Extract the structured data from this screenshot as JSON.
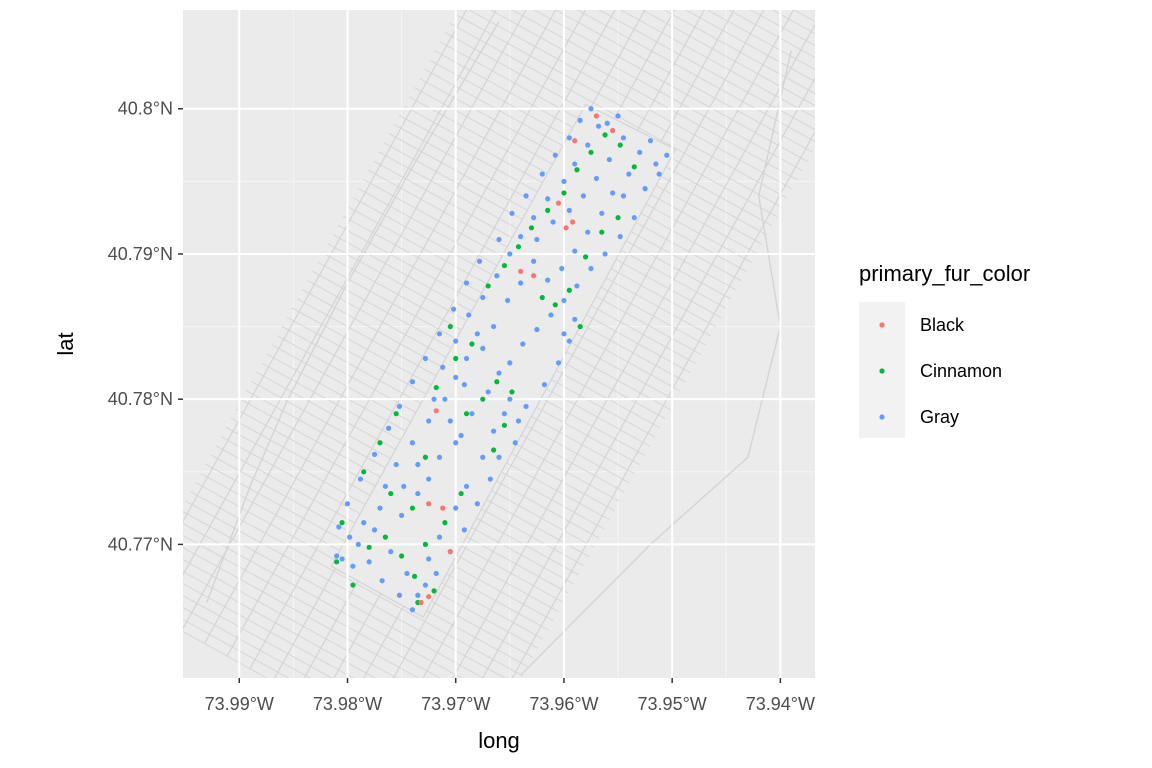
{
  "chart_data": {
    "type": "scatter",
    "xlabel": "long",
    "ylabel": "lat",
    "xlim": [
      -73.9952,
      -73.9368
    ],
    "ylim": [
      40.7608,
      40.8068
    ],
    "x_ticks": [
      -73.99,
      -73.98,
      -73.97,
      -73.96,
      -73.95,
      -73.94
    ],
    "x_tick_labels": [
      "73.99°W",
      "73.98°W",
      "73.97°W",
      "73.96°W",
      "73.95°W",
      "73.94°W"
    ],
    "y_ticks": [
      40.77,
      40.78,
      40.79,
      40.8
    ],
    "y_tick_labels": [
      "40.77°N",
      "40.78°N",
      "40.79°N",
      "40.8°N"
    ],
    "grid": true,
    "legend": {
      "title": "primary_fur_color",
      "position": "right",
      "entries": [
        "Black",
        "Cinnamon",
        "Gray"
      ]
    },
    "colors": {
      "Black": "#F8766D",
      "Cinnamon": "#00BA38",
      "Gray": "#619CFF",
      "panel": "#EBEBEB",
      "grid": "#FFFFFF",
      "basemap": "#D4D4D4"
    },
    "park_region": {
      "corners": [
        [
          -73.9815,
          40.7685
        ],
        [
          -73.973,
          40.765
        ],
        [
          -73.9497,
          40.7972
        ],
        [
          -73.958,
          40.8003
        ]
      ]
    },
    "series": [
      {
        "name": "Gray",
        "points": [
          [
            -73.9805,
            40.769
          ],
          [
            -73.979,
            40.77
          ],
          [
            -73.9775,
            40.771
          ],
          [
            -73.976,
            40.7695
          ],
          [
            -73.9745,
            40.768
          ],
          [
            -73.9735,
            40.7665
          ],
          [
            -73.9725,
            40.769
          ],
          [
            -73.9715,
            40.7705
          ],
          [
            -73.97,
            40.7725
          ],
          [
            -73.969,
            40.774
          ],
          [
            -73.9675,
            40.776
          ],
          [
            -73.9665,
            40.7778
          ],
          [
            -73.97,
            40.777
          ],
          [
            -73.9715,
            40.776
          ],
          [
            -73.9725,
            40.7745
          ],
          [
            -73.9735,
            40.7735
          ],
          [
            -73.975,
            40.772
          ],
          [
            -73.9765,
            40.774
          ],
          [
            -73.9755,
            40.7755
          ],
          [
            -73.974,
            40.777
          ],
          [
            -73.9725,
            40.7785
          ],
          [
            -73.971,
            40.78
          ],
          [
            -73.97,
            40.7815
          ],
          [
            -73.969,
            40.7828
          ],
          [
            -73.9675,
            40.7835
          ],
          [
            -73.966,
            40.7818
          ],
          [
            -73.965,
            40.78
          ],
          [
            -73.9642,
            40.7785
          ],
          [
            -73.9655,
            40.779
          ],
          [
            -73.967,
            40.7805
          ],
          [
            -73.9685,
            40.779
          ],
          [
            -73.9695,
            40.7775
          ],
          [
            -73.9705,
            40.7785
          ],
          [
            -73.972,
            40.78
          ],
          [
            -73.9712,
            40.7822
          ],
          [
            -73.97,
            40.784
          ],
          [
            -73.9688,
            40.7858
          ],
          [
            -73.9675,
            40.787
          ],
          [
            -73.9662,
            40.7885
          ],
          [
            -73.965,
            40.79
          ],
          [
            -73.964,
            40.7912
          ],
          [
            -73.9628,
            40.7925
          ],
          [
            -73.9615,
            40.7938
          ],
          [
            -73.96,
            40.795
          ],
          [
            -73.959,
            40.7962
          ],
          [
            -73.9578,
            40.7975
          ],
          [
            -73.9568,
            40.7988
          ],
          [
            -73.9575,
            40.8
          ],
          [
            -73.956,
            40.799
          ],
          [
            -73.9545,
            40.798
          ],
          [
            -73.953,
            40.797
          ],
          [
            -73.9515,
            40.7962
          ],
          [
            -73.9505,
            40.7968
          ],
          [
            -73.954,
            40.7955
          ],
          [
            -73.9555,
            40.7942
          ],
          [
            -73.9565,
            40.7928
          ],
          [
            -73.9578,
            40.7915
          ],
          [
            -73.959,
            40.7902
          ],
          [
            -73.9602,
            40.789
          ],
          [
            -73.9615,
            40.7882
          ],
          [
            -73.9628,
            40.7895
          ],
          [
            -73.964,
            40.788
          ],
          [
            -73.9652,
            40.7868
          ],
          [
            -73.9625,
            40.791
          ],
          [
            -73.961,
            40.7922
          ],
          [
            -73.9595,
            40.793
          ],
          [
            -73.9582,
            40.794
          ],
          [
            -73.957,
            40.7952
          ],
          [
            -73.9558,
            40.7965
          ],
          [
            -73.9545,
            40.794
          ],
          [
            -73.9535,
            40.7925
          ],
          [
            -73.9548,
            40.7912
          ],
          [
            -73.9562,
            40.79
          ],
          [
            -73.9575,
            40.789
          ],
          [
            -73.9588,
            40.7878
          ],
          [
            -73.96,
            40.7868
          ],
          [
            -73.9612,
            40.7858
          ],
          [
            -73.9625,
            40.7848
          ],
          [
            -73.9638,
            40.7838
          ],
          [
            -73.965,
            40.7825
          ],
          [
            -73.9665,
            40.785
          ],
          [
            -73.968,
            40.7845
          ],
          [
            -73.9692,
            40.781
          ],
          [
            -73.9735,
            40.7755
          ],
          [
            -73.9748,
            40.774
          ],
          [
            -73.977,
            40.7725
          ],
          [
            -73.9785,
            40.7715
          ],
          [
            -73.9798,
            40.7705
          ],
          [
            -73.981,
            40.7692
          ],
          [
            -73.9795,
            40.7685
          ],
          [
            -73.978,
            40.7688
          ],
          [
            -73.9768,
            40.7675
          ],
          [
            -73.9752,
            40.7665
          ],
          [
            -73.974,
            40.7655
          ],
          [
            -73.9728,
            40.7672
          ],
          [
            -73.9718,
            40.768
          ],
          [
            -73.9705,
            40.7695
          ],
          [
            -73.9692,
            40.771
          ],
          [
            -73.968,
            40.7728
          ],
          [
            -73.9668,
            40.7745
          ],
          [
            -73.966,
            40.776
          ],
          [
            -73.9645,
            40.777
          ],
          [
            -73.9635,
            40.7795
          ],
          [
            -73.9618,
            40.781
          ],
          [
            -73.9605,
            40.7825
          ],
          [
            -73.9595,
            40.784
          ],
          [
            -73.959,
            40.7855
          ],
          [
            -73.96,
            40.7845
          ],
          [
            -73.966,
            40.791
          ],
          [
            -73.9648,
            40.7928
          ],
          [
            -73.9635,
            40.794
          ],
          [
            -73.962,
            40.7955
          ],
          [
            -73.9608,
            40.7968
          ],
          [
            -73.9595,
            40.798
          ],
          [
            -73.9585,
            40.7992
          ],
          [
            -73.955,
            40.7995
          ],
          [
            -73.952,
            40.7978
          ],
          [
            -73.9512,
            40.7955
          ],
          [
            -73.9525,
            40.7945
          ],
          [
            -73.9678,
            40.7895
          ],
          [
            -73.969,
            40.788
          ],
          [
            -73.9702,
            40.7862
          ],
          [
            -73.9715,
            40.7845
          ],
          [
            -73.9728,
            40.7828
          ],
          [
            -73.974,
            40.7812
          ],
          [
            -73.9752,
            40.7795
          ],
          [
            -73.9762,
            40.778
          ],
          [
            -73.9775,
            40.7762
          ],
          [
            -73.9788,
            40.7745
          ],
          [
            -73.98,
            40.7728
          ],
          [
            -73.9808,
            40.7712
          ]
        ]
      },
      {
        "name": "Cinnamon",
        "points": [
          [
            -73.981,
            40.7688
          ],
          [
            -73.9795,
            40.7672
          ],
          [
            -73.978,
            40.7698
          ],
          [
            -73.9765,
            40.7705
          ],
          [
            -73.975,
            40.7692
          ],
          [
            -73.9738,
            40.7678
          ],
          [
            -73.9728,
            40.77
          ],
          [
            -73.971,
            40.7715
          ],
          [
            -73.9695,
            40.7735
          ],
          [
            -73.974,
            40.7725
          ],
          [
            -73.976,
            40.7735
          ],
          [
            -73.9728,
            40.776
          ],
          [
            -73.969,
            40.779
          ],
          [
            -73.9675,
            40.78
          ],
          [
            -73.9662,
            40.7812
          ],
          [
            -73.9648,
            40.7805
          ],
          [
            -73.97,
            40.7828
          ],
          [
            -73.9685,
            40.7838
          ],
          [
            -73.967,
            40.7878
          ],
          [
            -73.9655,
            40.7892
          ],
          [
            -73.9642,
            40.7905
          ],
          [
            -73.963,
            40.7918
          ],
          [
            -73.9615,
            40.793
          ],
          [
            -73.96,
            40.7942
          ],
          [
            -73.9588,
            40.7958
          ],
          [
            -73.9575,
            40.797
          ],
          [
            -73.9562,
            40.7982
          ],
          [
            -73.9548,
            40.7975
          ],
          [
            -73.9535,
            40.796
          ],
          [
            -73.955,
            40.7925
          ],
          [
            -73.9565,
            40.7915
          ],
          [
            -73.958,
            40.7898
          ],
          [
            -73.9595,
            40.7875
          ],
          [
            -73.9608,
            40.7865
          ],
          [
            -73.962,
            40.787
          ],
          [
            -73.9585,
            40.785
          ],
          [
            -73.9735,
            40.766
          ],
          [
            -73.972,
            40.7668
          ],
          [
            -73.9805,
            40.7715
          ],
          [
            -73.9785,
            40.775
          ],
          [
            -73.977,
            40.777
          ],
          [
            -73.9755,
            40.779
          ],
          [
            -73.9718,
            40.7808
          ],
          [
            -73.9705,
            40.785
          ],
          [
            -73.9665,
            40.7765
          ],
          [
            -73.9655,
            40.7782
          ]
        ]
      },
      {
        "name": "Black",
        "points": [
          [
            -73.9732,
            40.766
          ],
          [
            -73.9725,
            40.7664
          ],
          [
            -73.9705,
            40.7695
          ],
          [
            -73.9712,
            40.7725
          ],
          [
            -73.9725,
            40.7728
          ],
          [
            -73.9718,
            40.7792
          ],
          [
            -73.9628,
            40.7885
          ],
          [
            -73.964,
            40.7888
          ],
          [
            -73.9598,
            40.7918
          ],
          [
            -73.9592,
            40.7922
          ],
          [
            -73.9605,
            40.7935
          ],
          [
            -73.959,
            40.7978
          ],
          [
            -73.957,
            40.7995
          ],
          [
            -73.9555,
            40.7985
          ]
        ]
      }
    ]
  }
}
